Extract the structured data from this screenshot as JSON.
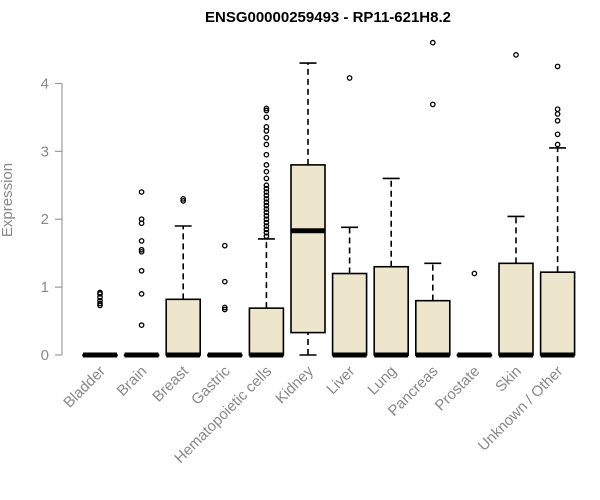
{
  "chart_data": {
    "type": "boxplot",
    "title": "ENSG00000259493 - RP11-621H8.2",
    "ylabel": "Expression",
    "xlabel": "",
    "ylim": [
      0,
      4.6
    ],
    "yticks": [
      0,
      1,
      2,
      3,
      4
    ],
    "grid": false,
    "legend": "none",
    "colors": {
      "box_fill": "#ede6cc",
      "stroke": "#000000",
      "axis_text": "#888888"
    },
    "categories": [
      "Bladder",
      "Brain",
      "Breast",
      "Gastric",
      "Hematopoietic cells",
      "Kidney",
      "Liver",
      "Lung",
      "Pancreas",
      "Prostate",
      "Skin",
      "Unknown / Other"
    ],
    "boxes": [
      {
        "category": "Bladder",
        "min": 0,
        "q1": 0,
        "median": 0,
        "q3": 0,
        "max": 0,
        "outliers": [
          0.73,
          0.76,
          0.8,
          0.85,
          0.9,
          0.92
        ]
      },
      {
        "category": "Brain",
        "min": 0,
        "q1": 0,
        "median": 0,
        "q3": 0,
        "max": 0,
        "outliers": [
          0.44,
          0.9,
          1.24,
          1.52,
          1.55,
          1.68,
          1.94,
          2.0,
          2.4
        ]
      },
      {
        "category": "Breast",
        "min": 0,
        "q1": 0,
        "median": 0,
        "q3": 0.82,
        "max": 1.9,
        "outliers": [
          2.27,
          2.3
        ]
      },
      {
        "category": "Gastric",
        "min": 0,
        "q1": 0,
        "median": 0,
        "q3": 0,
        "max": 0,
        "outliers": [
          0.67,
          0.7,
          1.08,
          1.61
        ]
      },
      {
        "category": "Hematopoietic cells",
        "min": 0,
        "q1": 0,
        "median": 0,
        "q3": 0.69,
        "max": 1.71,
        "outliers": [
          1.75,
          1.8,
          1.85,
          1.9,
          1.95,
          2.0,
          2.05,
          2.1,
          2.15,
          2.2,
          2.25,
          2.3,
          2.35,
          2.4,
          2.45,
          2.5,
          2.6,
          2.7,
          2.8,
          2.95,
          3.1,
          3.2,
          3.3,
          3.36,
          3.5,
          3.6,
          3.63
        ]
      },
      {
        "category": "Kidney",
        "min": 0,
        "q1": 0.33,
        "median": 1.83,
        "q3": 2.8,
        "max": 4.3,
        "outliers": []
      },
      {
        "category": "Liver",
        "min": 0,
        "q1": 0,
        "median": 0,
        "q3": 1.2,
        "max": 1.88,
        "outliers": [
          4.08
        ]
      },
      {
        "category": "Lung",
        "min": 0,
        "q1": 0,
        "median": 0,
        "q3": 1.3,
        "max": 2.6,
        "outliers": []
      },
      {
        "category": "Pancreas",
        "min": 0,
        "q1": 0,
        "median": 0,
        "q3": 0.8,
        "max": 1.35,
        "outliers": [
          3.69,
          4.6
        ]
      },
      {
        "category": "Prostate",
        "min": 0,
        "q1": 0,
        "median": 0,
        "q3": 0,
        "max": 0,
        "outliers": [
          1.2
        ]
      },
      {
        "category": "Skin",
        "min": 0,
        "q1": 0,
        "median": 0,
        "q3": 1.35,
        "max": 2.04,
        "outliers": [
          4.42
        ]
      },
      {
        "category": "Unknown / Other",
        "min": 0,
        "q1": 0,
        "median": 0,
        "q3": 1.22,
        "max": 3.05,
        "outliers": [
          3.1,
          3.25,
          3.45,
          3.55,
          3.62,
          4.25
        ]
      }
    ]
  }
}
